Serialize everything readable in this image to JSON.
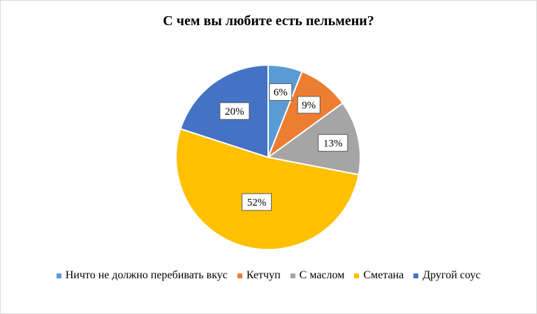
{
  "chart_data": {
    "type": "pie",
    "title": "С чем вы любите есть пельмени?",
    "categories": [
      "Ничто не должно перебивать вкус",
      "Кетчуп",
      "С маслом",
      "Сметана",
      "Другой соус"
    ],
    "values": [
      6,
      9,
      13,
      52,
      20
    ],
    "labels": [
      "6%",
      "9%",
      "13%",
      "52%",
      "20%"
    ],
    "colors": [
      "#5b9bd5",
      "#ed7d31",
      "#a5a5a5",
      "#ffc000",
      "#4472c4"
    ],
    "legend_position": "bottom",
    "start_angle": "12 o'clock, clockwise"
  }
}
